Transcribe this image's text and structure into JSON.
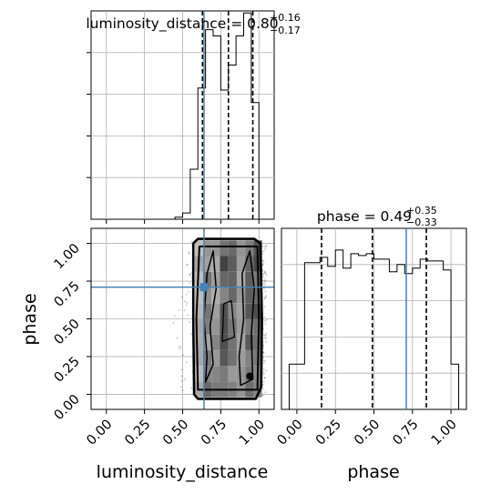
{
  "chart_data": {
    "type": "corner",
    "accent_color": "#4682b4",
    "dashed_color": "#000000",
    "panels": [
      {
        "id": "hist-luminosity",
        "type": "histogram",
        "title": {
          "prefix": "luminosity_distance = 0.80",
          "sup": "+0.16",
          "sub": "−0.17"
        },
        "xlim": [
          -0.1,
          1.1
        ],
        "xticks": [
          0.0,
          0.25,
          0.5,
          0.75,
          1.0
        ],
        "bins": [
          [
            0.4,
            0.45,
            0.0
          ],
          [
            0.45,
            0.5,
            0.01
          ],
          [
            0.5,
            0.55,
            0.03
          ],
          [
            0.55,
            0.6,
            0.24
          ],
          [
            0.6,
            0.65,
            0.63
          ],
          [
            0.65,
            0.7,
            0.91
          ],
          [
            0.7,
            0.75,
            0.88
          ],
          [
            0.75,
            0.8,
            0.62
          ],
          [
            0.8,
            0.85,
            0.74
          ],
          [
            0.85,
            0.9,
            0.88
          ],
          [
            0.9,
            0.95,
            0.99
          ],
          [
            0.95,
            1.0,
            0.56
          ],
          [
            1.0,
            1.05,
            0.0
          ]
        ],
        "quantiles": [
          0.63,
          0.8,
          0.96
        ],
        "truth": 0.64
      },
      {
        "id": "hist-phase",
        "type": "histogram",
        "title": {
          "prefix": "phase = 0.49",
          "sup": "+0.35",
          "sub": "−0.33"
        },
        "xlim": [
          -0.1,
          1.1
        ],
        "xticks": [
          0.0,
          0.25,
          0.5,
          0.75,
          1.0
        ],
        "xticklabels": [
          "0.00",
          "0.25",
          "0.50",
          "0.75",
          "1.00"
        ],
        "xlabel": "phase",
        "bins": [
          [
            -0.05,
            0.0,
            0.25
          ],
          [
            0.0,
            0.05,
            0.25
          ],
          [
            0.05,
            0.1,
            0.81
          ],
          [
            0.1,
            0.15,
            0.81
          ],
          [
            0.15,
            0.2,
            0.84
          ],
          [
            0.2,
            0.25,
            0.79
          ],
          [
            0.25,
            0.3,
            0.88
          ],
          [
            0.3,
            0.35,
            0.78
          ],
          [
            0.35,
            0.4,
            0.86
          ],
          [
            0.4,
            0.45,
            0.85
          ],
          [
            0.45,
            0.5,
            0.86
          ],
          [
            0.5,
            0.55,
            0.83
          ],
          [
            0.55,
            0.6,
            0.83
          ],
          [
            0.6,
            0.65,
            0.76
          ],
          [
            0.65,
            0.7,
            0.8
          ],
          [
            0.7,
            0.75,
            0.75
          ],
          [
            0.75,
            0.8,
            0.78
          ],
          [
            0.8,
            0.85,
            0.83
          ],
          [
            0.85,
            0.9,
            0.82
          ],
          [
            0.9,
            0.95,
            0.82
          ],
          [
            0.95,
            1.0,
            0.77
          ],
          [
            1.0,
            1.05,
            0.25
          ]
        ],
        "quantiles": [
          0.16,
          0.49,
          0.84
        ],
        "truth": 0.71
      },
      {
        "id": "scatter-2d",
        "type": "density2d",
        "xlim": [
          -0.1,
          1.1
        ],
        "ylim": [
          -0.1,
          1.1
        ],
        "xticks": [
          0.0,
          0.25,
          0.5,
          0.75,
          1.0
        ],
        "xticklabels": [
          "0.00",
          "0.25",
          "0.50",
          "0.75",
          "1.00"
        ],
        "yticks": [
          0.0,
          0.25,
          0.5,
          0.75,
          1.0
        ],
        "yticklabels": [
          "0.00",
          "0.25",
          "0.50",
          "0.75",
          "1.00"
        ],
        "xlabel": "luminosity_distance",
        "ylabel": "phase",
        "scatter_x_range": [
          0.4,
          1.05
        ],
        "scatter_y_range": [
          -0.02,
          1.02
        ],
        "mass_x_range": [
          0.58,
          1.02
        ],
        "truth": [
          0.64,
          0.71
        ]
      }
    ]
  }
}
